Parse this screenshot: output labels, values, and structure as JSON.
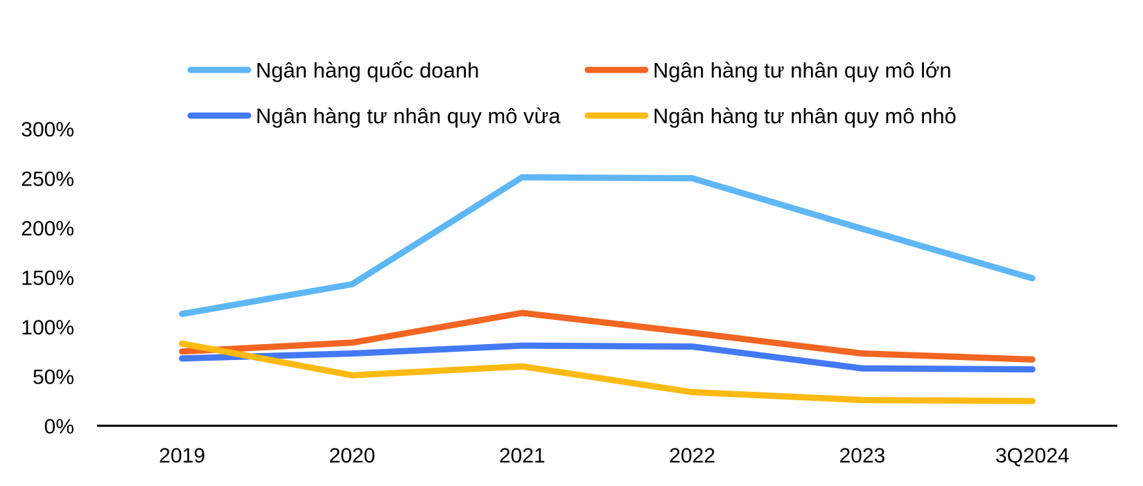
{
  "chart_data": {
    "type": "line",
    "title": "",
    "xlabel": "",
    "ylabel": "",
    "categories": [
      "2019",
      "2020",
      "2021",
      "2022",
      "2023",
      "3Q2024"
    ],
    "ylim": [
      0,
      300
    ],
    "yticks": [
      0,
      50,
      100,
      150,
      200,
      250,
      300
    ],
    "ytick_labels": [
      "0%",
      "50%",
      "100%",
      "150%",
      "200%",
      "250%",
      "300%"
    ],
    "grid": false,
    "legend_position": "top",
    "series": [
      {
        "name": "Ngân hàng quốc doanh",
        "color": "#5FB6F5",
        "values": [
          113,
          143,
          251,
          250,
          199,
          149
        ]
      },
      {
        "name": "Ngân hàng tư nhân quy mô lớn",
        "color": "#F26522",
        "values": [
          75,
          84,
          114,
          94,
          73,
          67
        ]
      },
      {
        "name": "Ngân hàng tư nhân quy mô vừa",
        "color": "#4479F6",
        "values": [
          68,
          73,
          81,
          80,
          58,
          57
        ]
      },
      {
        "name": "Ngân hàng tư nhân quy mô nhỏ",
        "color": "#FDBA12",
        "values": [
          83,
          51,
          60,
          34,
          26,
          25
        ]
      }
    ]
  }
}
